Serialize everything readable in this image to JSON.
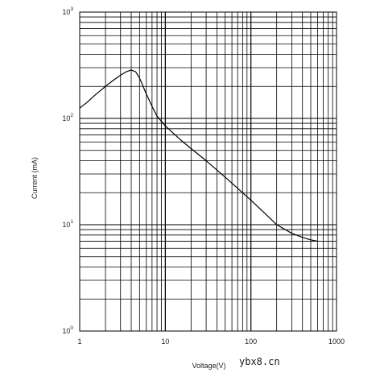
{
  "chart_data": {
    "type": "line",
    "title": "",
    "xlabel": "Voltage(V)",
    "ylabel": "Current (mA)",
    "x_scale": "log",
    "y_scale": "log",
    "xlim": [
      1,
      1000
    ],
    "ylim": [
      1,
      1000
    ],
    "grid": true,
    "legend": "none",
    "x_ticks": [
      "1",
      "10",
      "100",
      "1000"
    ],
    "y_ticks": [
      {
        "base": "10",
        "exp": "0"
      },
      {
        "base": "10",
        "exp": "1"
      },
      {
        "base": "10",
        "exp": "2"
      },
      {
        "base": "10",
        "exp": "3"
      }
    ],
    "series": [
      {
        "color": "#000000",
        "x": [
          1,
          1.2,
          1.5,
          2,
          2.5,
          3,
          3.5,
          4,
          4.5,
          5,
          6,
          7,
          8,
          10,
          15,
          20,
          30,
          50,
          70,
          100,
          150,
          200,
          300,
          400,
          500,
          600
        ],
        "y": [
          125,
          140,
          165,
          200,
          230,
          255,
          275,
          285,
          275,
          240,
          170,
          130,
          105,
          85,
          63,
          52,
          40,
          28,
          22,
          17,
          12.5,
          10,
          8.3,
          7.6,
          7.2,
          7.0
        ]
      }
    ]
  },
  "watermark": "ybx8.cn",
  "colors": {
    "grid": "#000000",
    "line": "#000000",
    "background": "#ffffff"
  }
}
